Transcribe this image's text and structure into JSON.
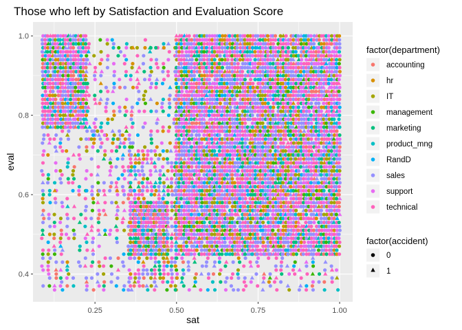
{
  "chart_data": {
    "type": "scatter",
    "title": "Those who left by Satisfaction and Evaluation Score",
    "xlabel": "sat",
    "ylabel": "eval",
    "xlim": [
      0.06,
      1.04
    ],
    "ylim": [
      0.33,
      1.035
    ],
    "x_ticks": [
      0.25,
      0.5,
      0.75,
      1.0
    ],
    "x_tick_labels": [
      "0.25",
      "0.50",
      "0.75",
      "1.00"
    ],
    "y_ticks": [
      0.4,
      0.6,
      0.8,
      1.0
    ],
    "y_tick_labels": [
      "0.4",
      "0.6",
      "0.8",
      "1.0"
    ],
    "grid": true,
    "legend_placement": "right",
    "color_legend": {
      "title": "factor(department)",
      "entries": [
        {
          "label": "accounting",
          "color": "#F8766D"
        },
        {
          "label": "hr",
          "color": "#D89000"
        },
        {
          "label": "IT",
          "color": "#A3A500"
        },
        {
          "label": "management",
          "color": "#39B600"
        },
        {
          "label": "marketing",
          "color": "#00BF7D"
        },
        {
          "label": "product_mng",
          "color": "#00BFC4"
        },
        {
          "label": "RandD",
          "color": "#00B0F6"
        },
        {
          "label": "sales",
          "color": "#9590FF"
        },
        {
          "label": "support",
          "color": "#E76BF3"
        },
        {
          "label": "technical",
          "color": "#FF62BC"
        }
      ]
    },
    "shape_legend": {
      "title": "factor(accident)",
      "entries": [
        {
          "label": "0",
          "shape": "circle"
        },
        {
          "label": "1",
          "shape": "triangle"
        }
      ]
    },
    "point_regions": [
      {
        "x": [
          0.09,
          0.23
        ],
        "y": [
          0.77,
          1.0
        ],
        "density": "dense"
      },
      {
        "x": [
          0.23,
          0.5
        ],
        "y": [
          0.72,
          1.0
        ],
        "density": "sparse"
      },
      {
        "x": [
          0.09,
          0.36
        ],
        "y": [
          0.36,
          0.77
        ],
        "density": "sparse"
      },
      {
        "x": [
          0.36,
          0.47
        ],
        "y": [
          0.45,
          0.58
        ],
        "density": "dense"
      },
      {
        "x": [
          0.36,
          0.5
        ],
        "y": [
          0.36,
          0.72
        ],
        "density": "medium"
      },
      {
        "x": [
          0.5,
          1.0
        ],
        "y": [
          0.45,
          1.0
        ],
        "density": "dense"
      },
      {
        "x": [
          0.5,
          1.0
        ],
        "y": [
          0.36,
          0.45
        ],
        "density": "sparse"
      }
    ],
    "accident_share": 0.15
  }
}
